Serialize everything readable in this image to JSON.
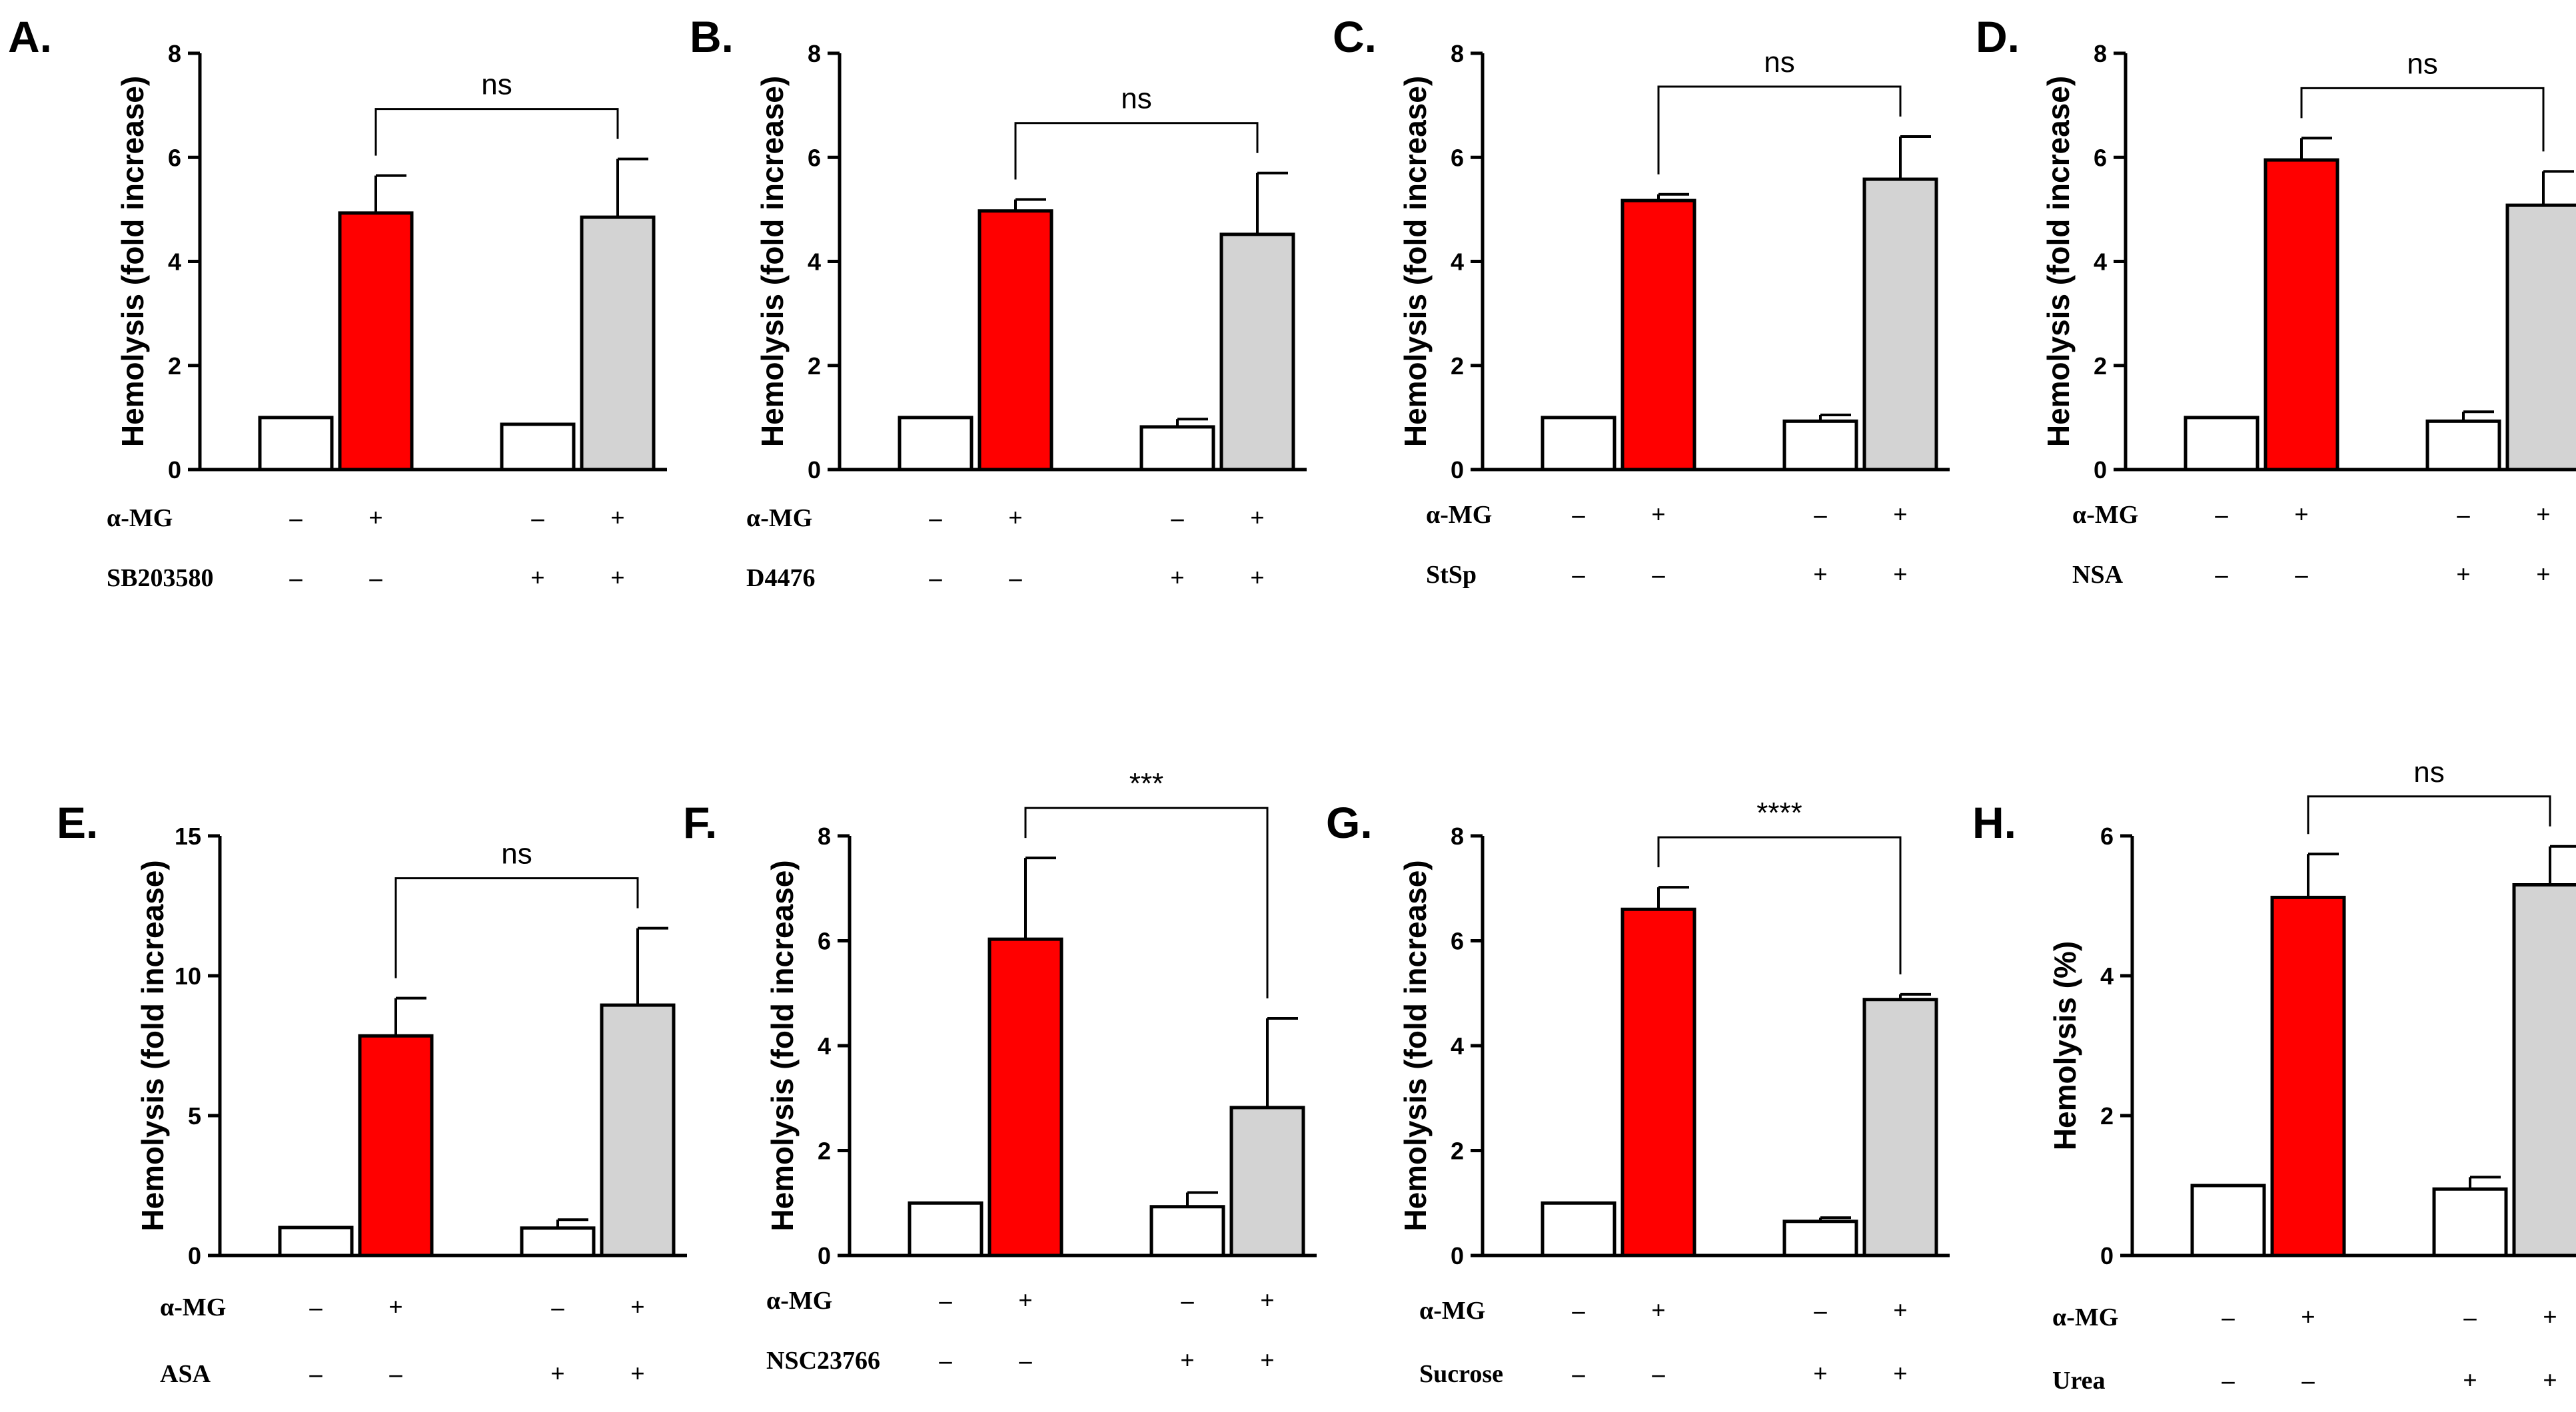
{
  "figure": {
    "colors": {
      "control": "#ffffff",
      "amg": "#ff0000",
      "inhibitor": "#d3d3d3",
      "stroke": "#000000"
    }
  },
  "chart_data": [
    {
      "panel": "A.",
      "type": "bar",
      "ylabel": "Hemolysis (fold increase)",
      "ylim": [
        0,
        8
      ],
      "yticks": [
        0,
        2,
        4,
        6,
        8
      ],
      "values": [
        1.0,
        4.93,
        0.87,
        4.85
      ],
      "errors": [
        0,
        0.72,
        0,
        1.12
      ],
      "significance": {
        "label": "ns",
        "from": 1,
        "to": 3
      },
      "rows": [
        {
          "label": "α-MG",
          "signs": [
            "–",
            "+",
            "–",
            "+"
          ]
        },
        {
          "label": "SB203580",
          "signs": [
            "–",
            "–",
            "+",
            "+"
          ]
        }
      ]
    },
    {
      "panel": "B.",
      "type": "bar",
      "ylabel": "Hemolysis (fold increase)",
      "ylim": [
        0,
        8
      ],
      "yticks": [
        0,
        2,
        4,
        6,
        8
      ],
      "values": [
        1.0,
        4.97,
        0.82,
        4.52
      ],
      "errors": [
        0,
        0.22,
        0.15,
        1.18
      ],
      "significance": {
        "label": "ns",
        "from": 1,
        "to": 3
      },
      "rows": [
        {
          "label": "α-MG",
          "signs": [
            "–",
            "+",
            "–",
            "+"
          ]
        },
        {
          "label": "D4476",
          "signs": [
            "–",
            "–",
            "+",
            "+"
          ]
        }
      ]
    },
    {
      "panel": "C.",
      "type": "bar",
      "ylabel": "Hemolysis (fold increase)",
      "ylim": [
        0,
        8
      ],
      "yticks": [
        0,
        2,
        4,
        6,
        8
      ],
      "values": [
        1.0,
        5.17,
        0.93,
        5.58
      ],
      "errors": [
        0,
        0.12,
        0.12,
        0.82
      ],
      "significance": {
        "label": "ns",
        "from": 1,
        "to": 3
      },
      "rows": [
        {
          "label": "α-MG",
          "signs": [
            "–",
            "+",
            "–",
            "+"
          ]
        },
        {
          "label": "StSp",
          "signs": [
            "–",
            "–",
            "+",
            "+"
          ]
        }
      ]
    },
    {
      "panel": "D.",
      "type": "bar",
      "ylabel": "Hemolysis (fold increase)",
      "ylim": [
        0,
        8
      ],
      "yticks": [
        0,
        2,
        4,
        6,
        8
      ],
      "values": [
        1.0,
        5.95,
        0.93,
        5.08
      ],
      "errors": [
        0,
        0.42,
        0.18,
        0.65
      ],
      "significance": {
        "label": "ns",
        "from": 1,
        "to": 3
      },
      "rows": [
        {
          "label": "α-MG",
          "signs": [
            "–",
            "+",
            "–",
            "+"
          ]
        },
        {
          "label": "NSA",
          "signs": [
            "–",
            "–",
            "+",
            "+"
          ]
        }
      ]
    },
    {
      "panel": "E.",
      "type": "bar",
      "ylabel": "Hemolysis (fold increase)",
      "ylim": [
        0,
        15
      ],
      "yticks": [
        0,
        5,
        10,
        15
      ],
      "values": [
        1.0,
        7.85,
        0.98,
        8.95
      ],
      "errors": [
        0,
        1.35,
        0.3,
        2.75
      ],
      "significance": {
        "label": "ns",
        "from": 1,
        "to": 3
      },
      "rows": [
        {
          "label": "α-MG",
          "signs": [
            "–",
            "+",
            "–",
            "+"
          ]
        },
        {
          "label": "ASA",
          "signs": [
            "–",
            "–",
            "+",
            "+"
          ]
        }
      ]
    },
    {
      "panel": "F.",
      "type": "bar",
      "ylabel": "Hemolysis (fold increase)",
      "ylim": [
        0,
        8
      ],
      "yticks": [
        0,
        2,
        4,
        6,
        8
      ],
      "values": [
        1.0,
        6.03,
        0.93,
        2.82
      ],
      "errors": [
        0,
        1.55,
        0.27,
        1.7
      ],
      "significance": {
        "label": "***",
        "from": 1,
        "to": 3
      },
      "rows": [
        {
          "label": "α-MG",
          "signs": [
            "–",
            "+",
            "–",
            "+"
          ]
        },
        {
          "label": "NSC23766",
          "signs": [
            "–",
            "–",
            "+",
            "+"
          ]
        }
      ]
    },
    {
      "panel": "G.",
      "type": "bar",
      "ylabel": "Hemolysis (fold increase)",
      "ylim": [
        0,
        8
      ],
      "yticks": [
        0,
        2,
        4,
        6,
        8
      ],
      "values": [
        1.0,
        6.6,
        0.65,
        4.88
      ],
      "errors": [
        0,
        0.42,
        0.07,
        0.1
      ],
      "significance": {
        "label": "****",
        "from": 1,
        "to": 3
      },
      "rows": [
        {
          "label": "α-MG",
          "signs": [
            "–",
            "+",
            "–",
            "+"
          ]
        },
        {
          "label": "Sucrose",
          "signs": [
            "–",
            "–",
            "+",
            "+"
          ]
        }
      ]
    },
    {
      "panel": "H.",
      "type": "bar",
      "ylabel": "Hemolysis (%)",
      "ylim": [
        0,
        6
      ],
      "yticks": [
        0,
        2,
        4,
        6
      ],
      "values": [
        1.0,
        5.12,
        0.95,
        5.3
      ],
      "errors": [
        0,
        0.62,
        0.17,
        0.55
      ],
      "significance": {
        "label": "ns",
        "from": 1,
        "to": 3
      },
      "rows": [
        {
          "label": "α-MG",
          "signs": [
            "–",
            "+",
            "–",
            "+"
          ]
        },
        {
          "label": "Urea",
          "signs": [
            "–",
            "–",
            "+",
            "+"
          ]
        }
      ]
    }
  ]
}
